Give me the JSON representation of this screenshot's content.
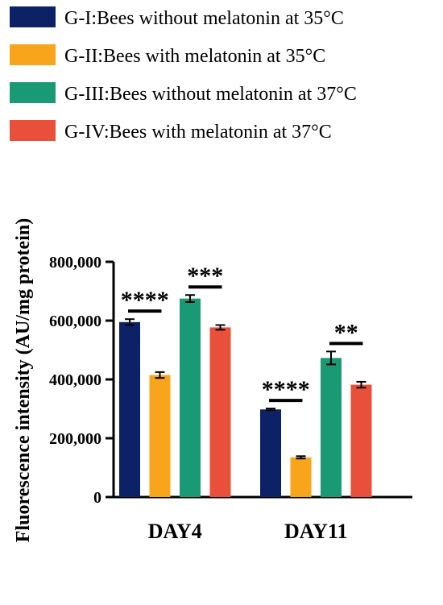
{
  "chart_data": {
    "type": "bar",
    "ylabel": "Fluorescence intensity (AU/mg protein)",
    "xlabel": "",
    "categories": [
      "DAY4",
      "DAY11"
    ],
    "ylim": [
      0,
      800000
    ],
    "yticks": [
      0,
      200000,
      400000,
      600000,
      800000
    ],
    "ytick_labels": [
      "0",
      "200,000",
      "400,000",
      "600,000",
      "800,000"
    ],
    "legend_position": "top",
    "grid": false,
    "series": [
      {
        "name": "G-I:Bees without melatonin at 35°C",
        "color": "#0d2266",
        "values": [
          595000,
          298000
        ],
        "errors": [
          10000,
          3000
        ]
      },
      {
        "name": "G-II:Bees with melatonin at 35°C",
        "color": "#f8a51c",
        "values": [
          415000,
          135000
        ],
        "errors": [
          10000,
          4000
        ]
      },
      {
        "name": "G-III:Bees without melatonin at 37°C",
        "color": "#1a9a74",
        "values": [
          675000,
          473000
        ],
        "errors": [
          12000,
          22000
        ]
      },
      {
        "name": "G-IV:Bees with melatonin at 37°C",
        "color": "#e8503b",
        "values": [
          577000,
          382000
        ],
        "errors": [
          8000,
          10000
        ]
      }
    ],
    "annotations": [
      {
        "category": "DAY4",
        "pair": [
          0,
          1
        ],
        "label": "****"
      },
      {
        "category": "DAY4",
        "pair": [
          2,
          3
        ],
        "label": "***"
      },
      {
        "category": "DAY11",
        "pair": [
          0,
          1
        ],
        "label": "****"
      },
      {
        "category": "DAY11",
        "pair": [
          2,
          3
        ],
        "label": "**"
      }
    ]
  }
}
